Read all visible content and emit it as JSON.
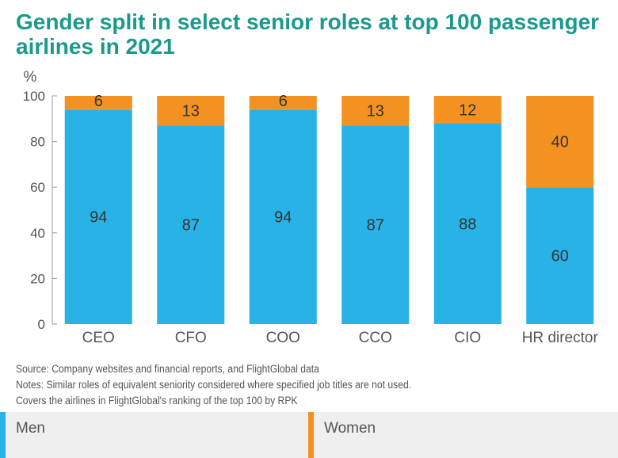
{
  "title": "Gender split in select senior roles at top 100 passenger airlines in 2021",
  "unit_label": "%",
  "notes": [
    "Source: Company websites and financial reports, and FlightGlobal data",
    "Notes: Similar roles of equivalent seniority considered where specified job titles are not used.",
    "Covers the airlines in FlightGlobal's ranking of the top 100 by RPK"
  ],
  "legend": [
    {
      "label": "Men",
      "color": "#29b2e6"
    },
    {
      "label": "Women",
      "color": "#f39220"
    }
  ],
  "chart_data": {
    "type": "bar",
    "stacked": true,
    "categories": [
      "CEO",
      "CFO",
      "COO",
      "CCO",
      "CIO",
      "HR director"
    ],
    "series": [
      {
        "name": "Men",
        "color": "#29b2e6",
        "values": [
          94,
          87,
          94,
          87,
          88,
          60
        ]
      },
      {
        "name": "Women",
        "color": "#f39220",
        "values": [
          6,
          13,
          6,
          13,
          12,
          40
        ]
      }
    ],
    "ylabel": "%",
    "ylim": [
      0,
      100
    ],
    "yticks": [
      0,
      20,
      40,
      60,
      80,
      100
    ],
    "grid": false,
    "legend_position": "bottom"
  }
}
